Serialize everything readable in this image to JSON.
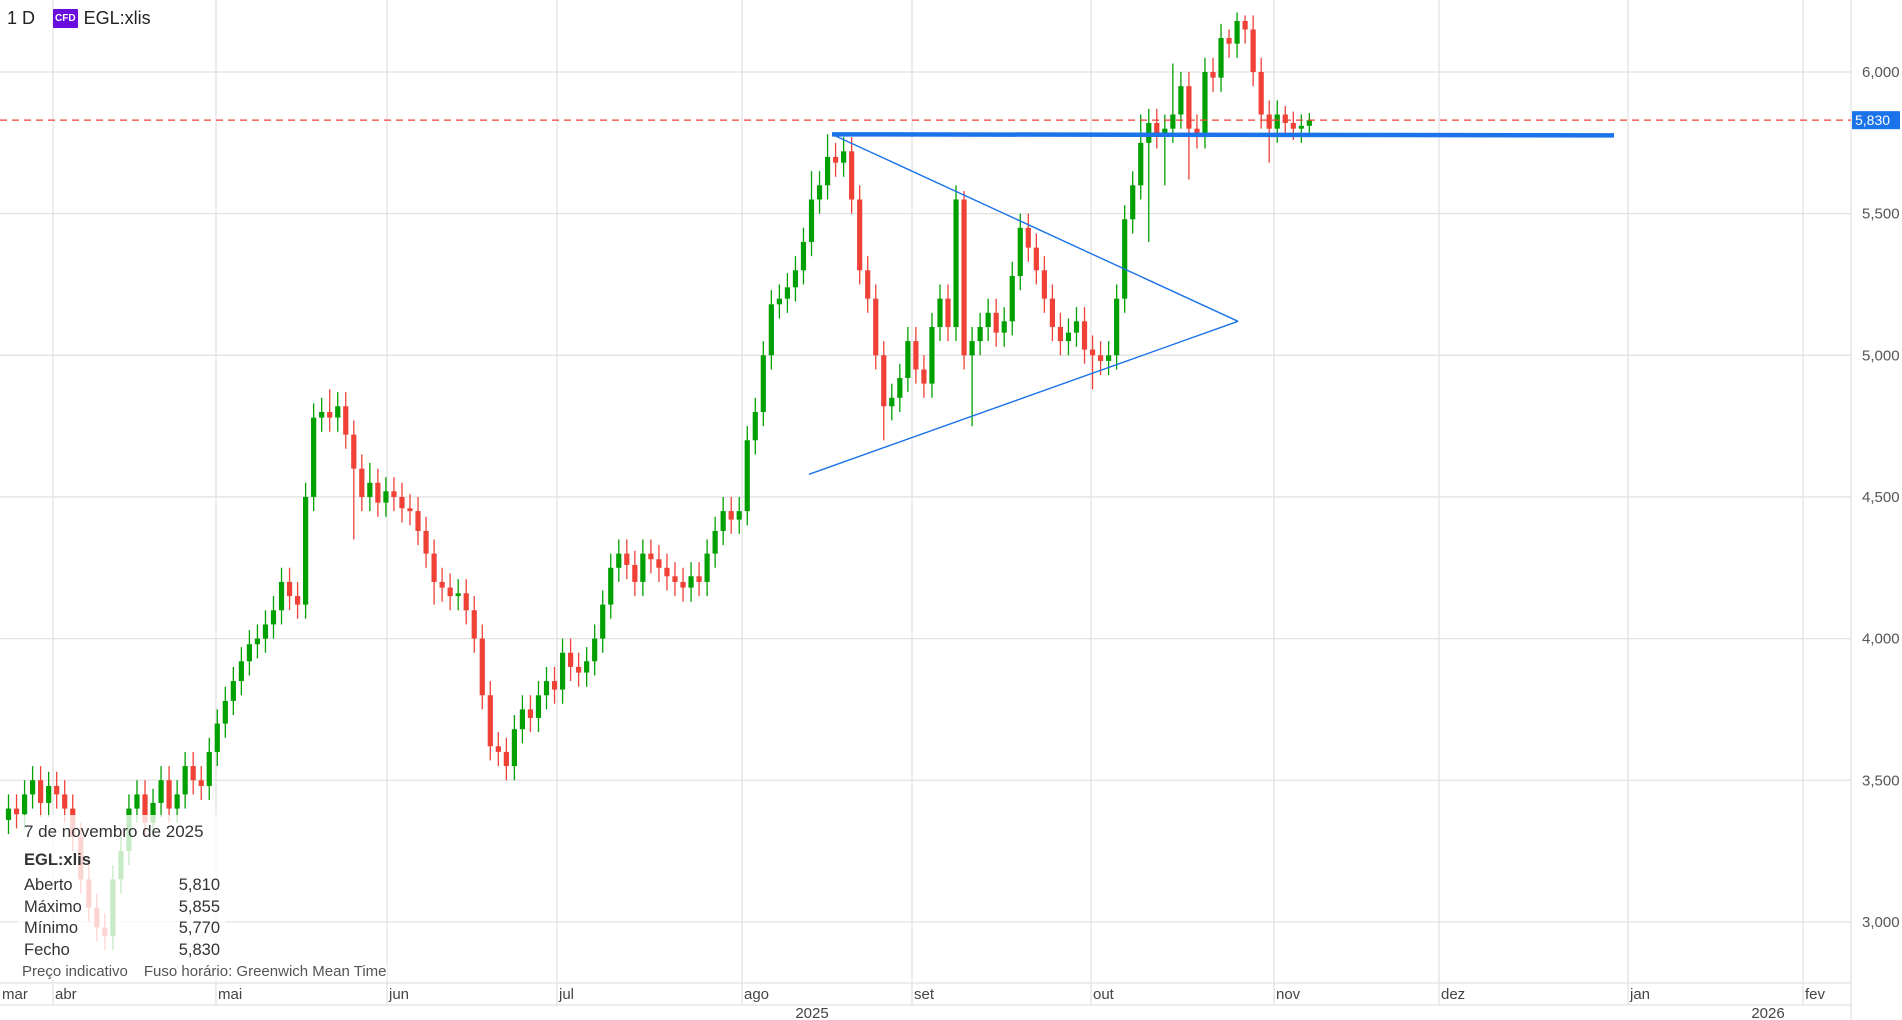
{
  "header": {
    "timeframe": "1 D",
    "badge": "CFD",
    "symbol": "EGL:xlis",
    "badge_color": "#6a0ee0"
  },
  "tooltip": {
    "date": "7 de novembro de 2025",
    "symbol": "EGL:xlis",
    "rows": [
      {
        "label": "Aberto",
        "value": "5,810"
      },
      {
        "label": "Máximo",
        "value": "5,855"
      },
      {
        "label": "Mínimo",
        "value": "5,770"
      },
      {
        "label": "Fecho",
        "value": "5,830"
      }
    ],
    "note": "Preço indicativo",
    "timezone": "Fuso horário: Greenwich Mean Time"
  },
  "chart_data": {
    "type": "candlestick",
    "title": "",
    "ylim": [
      2.75,
      6.25
    ],
    "y_ticks": [
      3.0,
      3.5,
      4.0,
      4.5,
      5.0,
      5.5,
      6.0
    ],
    "y_tick_labels": [
      "3,000",
      "3,500",
      "4,000",
      "4,500",
      "5,000",
      "5,500",
      "6,000"
    ],
    "x_tick_labels": [
      "mar",
      "abr",
      "mai",
      "jun",
      "jul",
      "ago",
      "set",
      "out",
      "nov",
      "dez",
      "jan",
      "fev"
    ],
    "year_labels": [
      "2025",
      "2026"
    ],
    "last_price": 5.83,
    "last_price_label": "5,830",
    "grid": true,
    "colors": {
      "up": "#00a000",
      "down": "#ef4136",
      "drawing": "#1a73e8",
      "last_price": "#ef4136",
      "grid": "#e2e2e2"
    },
    "last_date": "2025-11-07",
    "ohlc": [
      [
        3.36,
        3.45,
        3.31,
        3.4
      ],
      [
        3.4,
        3.45,
        3.33,
        3.38
      ],
      [
        3.38,
        3.5,
        3.33,
        3.45
      ],
      [
        3.45,
        3.55,
        3.4,
        3.5
      ],
      [
        3.5,
        3.55,
        3.37,
        3.42
      ],
      [
        3.42,
        3.53,
        3.37,
        3.48
      ],
      [
        3.48,
        3.53,
        3.4,
        3.45
      ],
      [
        3.45,
        3.5,
        3.35,
        3.4
      ],
      [
        3.4,
        3.45,
        3.25,
        3.3
      ],
      [
        3.3,
        3.35,
        3.1,
        3.15
      ],
      [
        3.15,
        3.2,
        3.0,
        3.05
      ],
      [
        3.05,
        3.1,
        2.93,
        2.98
      ],
      [
        2.98,
        3.03,
        2.9,
        2.95
      ],
      [
        2.95,
        3.2,
        2.9,
        3.15
      ],
      [
        3.15,
        3.3,
        3.1,
        3.25
      ],
      [
        3.25,
        3.45,
        3.2,
        3.4
      ],
      [
        3.4,
        3.5,
        3.35,
        3.45
      ],
      [
        3.45,
        3.5,
        3.3,
        3.35
      ],
      [
        3.35,
        3.47,
        3.3,
        3.42
      ],
      [
        3.42,
        3.55,
        3.37,
        3.5
      ],
      [
        3.5,
        3.55,
        3.35,
        3.4
      ],
      [
        3.4,
        3.5,
        3.35,
        3.45
      ],
      [
        3.45,
        3.6,
        3.4,
        3.55
      ],
      [
        3.55,
        3.6,
        3.45,
        3.5
      ],
      [
        3.5,
        3.55,
        3.43,
        3.48
      ],
      [
        3.48,
        3.65,
        3.43,
        3.6
      ],
      [
        3.6,
        3.75,
        3.55,
        3.7
      ],
      [
        3.7,
        3.83,
        3.65,
        3.78
      ],
      [
        3.78,
        3.9,
        3.73,
        3.85
      ],
      [
        3.85,
        3.97,
        3.8,
        3.92
      ],
      [
        3.92,
        4.03,
        3.87,
        3.98
      ],
      [
        3.98,
        4.05,
        3.93,
        4.0
      ],
      [
        4.0,
        4.1,
        3.95,
        4.05
      ],
      [
        4.05,
        4.15,
        4.0,
        4.1
      ],
      [
        4.1,
        4.25,
        4.05,
        4.2
      ],
      [
        4.2,
        4.25,
        4.1,
        4.15
      ],
      [
        4.15,
        4.2,
        4.07,
        4.12
      ],
      [
        4.12,
        4.55,
        4.07,
        4.5
      ],
      [
        4.5,
        4.83,
        4.45,
        4.78
      ],
      [
        4.78,
        4.85,
        4.73,
        4.8
      ],
      [
        4.8,
        4.88,
        4.73,
        4.78
      ],
      [
        4.78,
        4.87,
        4.73,
        4.82
      ],
      [
        4.82,
        4.87,
        4.67,
        4.72
      ],
      [
        4.72,
        4.77,
        4.35,
        4.6
      ],
      [
        4.6,
        4.65,
        4.45,
        4.5
      ],
      [
        4.5,
        4.62,
        4.45,
        4.55
      ],
      [
        4.55,
        4.6,
        4.43,
        4.48
      ],
      [
        4.48,
        4.57,
        4.43,
        4.52
      ],
      [
        4.52,
        4.57,
        4.45,
        4.5
      ],
      [
        4.5,
        4.55,
        4.41,
        4.46
      ],
      [
        4.46,
        4.51,
        4.4,
        4.45
      ],
      [
        4.45,
        4.5,
        4.33,
        4.38
      ],
      [
        4.38,
        4.43,
        4.25,
        4.3
      ],
      [
        4.3,
        4.35,
        4.12,
        4.2
      ],
      [
        4.2,
        4.25,
        4.13,
        4.18
      ],
      [
        4.18,
        4.23,
        4.1,
        4.15
      ],
      [
        4.15,
        4.21,
        4.1,
        4.16
      ],
      [
        4.16,
        4.21,
        4.05,
        4.1
      ],
      [
        4.1,
        4.15,
        3.95,
        4.0
      ],
      [
        4.0,
        4.05,
        3.75,
        3.8
      ],
      [
        3.8,
        3.85,
        3.57,
        3.62
      ],
      [
        3.62,
        3.67,
        3.55,
        3.6
      ],
      [
        3.6,
        3.65,
        3.5,
        3.55
      ],
      [
        3.55,
        3.73,
        3.5,
        3.68
      ],
      [
        3.68,
        3.8,
        3.63,
        3.75
      ],
      [
        3.75,
        3.8,
        3.67,
        3.72
      ],
      [
        3.72,
        3.85,
        3.67,
        3.8
      ],
      [
        3.8,
        3.9,
        3.75,
        3.85
      ],
      [
        3.85,
        3.9,
        3.77,
        3.82
      ],
      [
        3.82,
        4.0,
        3.77,
        3.95
      ],
      [
        3.95,
        4.0,
        3.85,
        3.9
      ],
      [
        3.9,
        3.95,
        3.83,
        3.88
      ],
      [
        3.88,
        3.97,
        3.83,
        3.92
      ],
      [
        3.92,
        4.05,
        3.87,
        4.0
      ],
      [
        4.0,
        4.17,
        3.95,
        4.12
      ],
      [
        4.12,
        4.3,
        4.07,
        4.25
      ],
      [
        4.25,
        4.35,
        4.2,
        4.3
      ],
      [
        4.3,
        4.35,
        4.21,
        4.26
      ],
      [
        4.26,
        4.31,
        4.15,
        4.2
      ],
      [
        4.2,
        4.35,
        4.15,
        4.3
      ],
      [
        4.3,
        4.35,
        4.23,
        4.28
      ],
      [
        4.28,
        4.33,
        4.2,
        4.25
      ],
      [
        4.25,
        4.3,
        4.17,
        4.22
      ],
      [
        4.22,
        4.27,
        4.15,
        4.2
      ],
      [
        4.2,
        4.25,
        4.13,
        4.18
      ],
      [
        4.18,
        4.27,
        4.13,
        4.22
      ],
      [
        4.22,
        4.27,
        4.15,
        4.2
      ],
      [
        4.2,
        4.35,
        4.15,
        4.3
      ],
      [
        4.3,
        4.43,
        4.25,
        4.38
      ],
      [
        4.38,
        4.5,
        4.33,
        4.45
      ],
      [
        4.45,
        4.5,
        4.37,
        4.42
      ],
      [
        4.42,
        4.5,
        4.37,
        4.45
      ],
      [
        4.45,
        4.75,
        4.4,
        4.7
      ],
      [
        4.7,
        4.85,
        4.65,
        4.8
      ],
      [
        4.8,
        5.05,
        4.75,
        5.0
      ],
      [
        5.0,
        5.23,
        4.95,
        5.18
      ],
      [
        5.18,
        5.25,
        5.13,
        5.2
      ],
      [
        5.2,
        5.29,
        5.15,
        5.24
      ],
      [
        5.24,
        5.35,
        5.19,
        5.3
      ],
      [
        5.3,
        5.45,
        5.25,
        5.4
      ],
      [
        5.4,
        5.65,
        5.35,
        5.55
      ],
      [
        5.55,
        5.65,
        5.5,
        5.6
      ],
      [
        5.6,
        5.78,
        5.55,
        5.7
      ],
      [
        5.7,
        5.75,
        5.63,
        5.68
      ],
      [
        5.68,
        5.77,
        5.63,
        5.72
      ],
      [
        5.72,
        5.77,
        5.5,
        5.55
      ],
      [
        5.55,
        5.6,
        5.25,
        5.3
      ],
      [
        5.3,
        5.35,
        5.15,
        5.2
      ],
      [
        5.2,
        5.25,
        4.95,
        5.0
      ],
      [
        5.0,
        5.05,
        4.7,
        4.82
      ],
      [
        4.82,
        4.9,
        4.77,
        4.85
      ],
      [
        4.85,
        4.97,
        4.8,
        4.92
      ],
      [
        4.92,
        5.1,
        4.87,
        5.05
      ],
      [
        5.05,
        5.1,
        4.9,
        4.95
      ],
      [
        4.95,
        5.0,
        4.85,
        4.9
      ],
      [
        4.9,
        5.15,
        4.85,
        5.1
      ],
      [
        5.1,
        5.25,
        5.05,
        5.2
      ],
      [
        5.2,
        5.25,
        5.05,
        5.1
      ],
      [
        5.1,
        5.6,
        5.05,
        5.55
      ],
      [
        5.55,
        5.58,
        4.95,
        5.0
      ],
      [
        5.0,
        5.1,
        4.75,
        5.05
      ],
      [
        5.05,
        5.15,
        5.0,
        5.1
      ],
      [
        5.1,
        5.2,
        5.05,
        5.15
      ],
      [
        5.15,
        5.2,
        5.03,
        5.08
      ],
      [
        5.08,
        5.17,
        5.03,
        5.12
      ],
      [
        5.12,
        5.33,
        5.07,
        5.28
      ],
      [
        5.28,
        5.5,
        5.23,
        5.45
      ],
      [
        5.45,
        5.5,
        5.33,
        5.38
      ],
      [
        5.38,
        5.43,
        5.25,
        5.3
      ],
      [
        5.3,
        5.35,
        5.15,
        5.2
      ],
      [
        5.2,
        5.25,
        5.05,
        5.1
      ],
      [
        5.1,
        5.15,
        5.0,
        5.05
      ],
      [
        5.05,
        5.13,
        5.0,
        5.08
      ],
      [
        5.08,
        5.17,
        5.03,
        5.12
      ],
      [
        5.12,
        5.17,
        4.97,
        5.02
      ],
      [
        5.02,
        5.07,
        4.88,
        5.0
      ],
      [
        5.0,
        5.05,
        4.93,
        4.98
      ],
      [
        4.98,
        5.05,
        4.93,
        5.0
      ],
      [
        5.0,
        5.25,
        4.95,
        5.2
      ],
      [
        5.2,
        5.53,
        5.15,
        5.48
      ],
      [
        5.48,
        5.65,
        5.43,
        5.6
      ],
      [
        5.6,
        5.85,
        5.55,
        5.75
      ],
      [
        5.75,
        5.87,
        5.4,
        5.82
      ],
      [
        5.82,
        5.87,
        5.73,
        5.78
      ],
      [
        5.78,
        5.85,
        5.6,
        5.8
      ],
      [
        5.8,
        6.03,
        5.75,
        5.85
      ],
      [
        5.85,
        6.0,
        5.8,
        5.95
      ],
      [
        5.95,
        6.0,
        5.62,
        5.8
      ],
      [
        5.8,
        5.85,
        5.73,
        5.78
      ],
      [
        5.78,
        6.05,
        5.73,
        6.0
      ],
      [
        6.0,
        6.05,
        5.93,
        5.98
      ],
      [
        5.98,
        6.17,
        5.93,
        6.12
      ],
      [
        6.12,
        6.15,
        6.05,
        6.1
      ],
      [
        6.1,
        6.21,
        6.05,
        6.18
      ],
      [
        6.18,
        6.2,
        6.1,
        6.15
      ],
      [
        6.15,
        6.2,
        5.95,
        6.0
      ],
      [
        6.0,
        6.05,
        5.8,
        5.85
      ],
      [
        5.85,
        5.9,
        5.68,
        5.8
      ],
      [
        5.8,
        5.9,
        5.75,
        5.85
      ],
      [
        5.85,
        5.88,
        5.77,
        5.82
      ],
      [
        5.82,
        5.86,
        5.76,
        5.8
      ],
      [
        5.8,
        5.85,
        5.75,
        5.81
      ],
      [
        5.81,
        5.855,
        5.77,
        5.83
      ]
    ],
    "drawings": [
      {
        "kind": "horizontal-line",
        "price": 5.78
      },
      {
        "kind": "triangle-upper",
        "from_price": 5.78,
        "to_price": 5.12
      },
      {
        "kind": "triangle-lower",
        "from_price": 4.58,
        "to_price": 5.12
      }
    ]
  }
}
